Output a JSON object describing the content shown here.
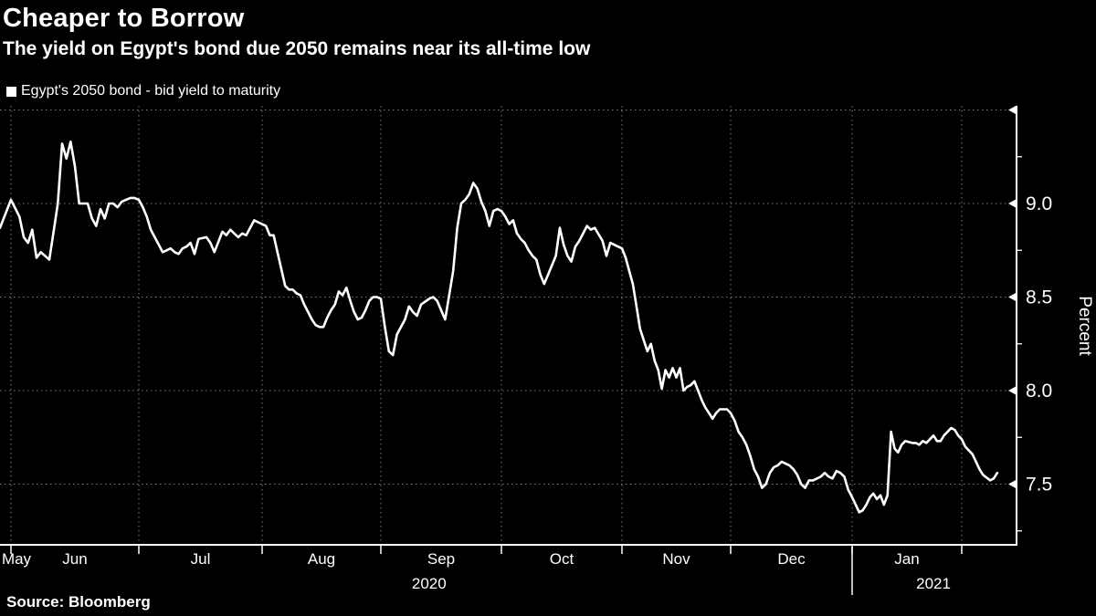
{
  "header": {
    "title": "Cheaper to Borrow",
    "subtitle": "The yield on Egypt's bond due 2050 remains near its all-time low"
  },
  "legend": {
    "marker_color": "#ffffff",
    "label": "Egypt's 2050 bond - bid yield to maturity"
  },
  "source": "Source: Bloomberg",
  "colors": {
    "background": "#000000",
    "line": "#ffffff",
    "text": "#ffffff",
    "grid": "#7d7d7d",
    "axis": "#ffffff"
  },
  "y_axis": {
    "title": "Percent",
    "ticks": [
      {
        "value": 9.0,
        "label": "9.0"
      },
      {
        "value": 8.5,
        "label": "8.5"
      },
      {
        "value": 8.0,
        "label": "8.0"
      },
      {
        "value": 7.5,
        "label": "7.5"
      }
    ],
    "major_tick_values": [
      9.5,
      9.0,
      8.5,
      8.0,
      7.5
    ],
    "minor_tick_values": [
      9.25,
      8.75,
      8.25,
      7.75,
      7.25
    ]
  },
  "x_axis": {
    "tick_dates": [
      "2020-06-01",
      "2020-07-01",
      "2020-08-01",
      "2020-09-01",
      "2020-10-01",
      "2020-11-01",
      "2020-12-01",
      "2021-01-01",
      "2021-02-01"
    ],
    "months": [
      {
        "label": "May",
        "start": "2020-05-29",
        "end": "2020-06-01"
      },
      {
        "label": "Jun",
        "start": "2020-06-01",
        "end": "2020-07-01"
      },
      {
        "label": "Jul",
        "start": "2020-07-01",
        "end": "2020-08-01"
      },
      {
        "label": "Aug",
        "start": "2020-08-01",
        "end": "2020-09-01"
      },
      {
        "label": "Sep",
        "start": "2020-09-01",
        "end": "2020-10-01"
      },
      {
        "label": "Oct",
        "start": "2020-10-01",
        "end": "2020-11-01"
      },
      {
        "label": "Nov",
        "start": "2020-11-01",
        "end": "2020-12-01"
      },
      {
        "label": "Dec",
        "start": "2020-12-01",
        "end": "2021-01-01"
      },
      {
        "label": "Jan",
        "start": "2021-01-01",
        "end": "2021-02-01"
      }
    ],
    "years": [
      {
        "label": "2020",
        "at": "2020-09-13"
      },
      {
        "label": "2021",
        "at": "2021-01-24"
      }
    ],
    "year_separator_date": "2021-01-01"
  },
  "chart_data": {
    "type": "line",
    "title": "Cheaper to Borrow",
    "subtitle": "The yield on Egypt's bond due 2050 remains near its all-time low",
    "xlabel": "",
    "ylabel": "Percent",
    "ylim": [
      7.17,
      9.52
    ],
    "y_gridlines": [
      7.5,
      8.0,
      8.5,
      9.0,
      9.5
    ],
    "x_range": [
      "2020-05-29",
      "2021-02-15"
    ],
    "grid": "dotted",
    "legend_position": "top-left",
    "series": [
      {
        "name": "Egypt's 2050 bond - bid yield to maturity",
        "color": "#ffffff",
        "points": [
          [
            "2020-05-29",
            8.87
          ],
          [
            "2020-06-01",
            9.02
          ],
          [
            "2020-06-03",
            8.93
          ],
          [
            "2020-06-04",
            8.82
          ],
          [
            "2020-06-05",
            8.79
          ],
          [
            "2020-06-06",
            8.86
          ],
          [
            "2020-06-07",
            8.71
          ],
          [
            "2020-06-08",
            8.74
          ],
          [
            "2020-06-10",
            8.7
          ],
          [
            "2020-06-11",
            8.85
          ],
          [
            "2020-06-12",
            9.0
          ],
          [
            "2020-06-13",
            9.32
          ],
          [
            "2020-06-14",
            9.24
          ],
          [
            "2020-06-15",
            9.33
          ],
          [
            "2020-06-16",
            9.2
          ],
          [
            "2020-06-17",
            9.0
          ],
          [
            "2020-06-19",
            9.0
          ],
          [
            "2020-06-20",
            8.92
          ],
          [
            "2020-06-21",
            8.88
          ],
          [
            "2020-06-22",
            8.97
          ],
          [
            "2020-06-23",
            8.92
          ],
          [
            "2020-06-24",
            9.0
          ],
          [
            "2020-06-25",
            9.0
          ],
          [
            "2020-06-26",
            8.98
          ],
          [
            "2020-06-27",
            9.01
          ],
          [
            "2020-06-28",
            9.02
          ],
          [
            "2020-06-29",
            9.03
          ],
          [
            "2020-06-30",
            9.03
          ],
          [
            "2020-07-01",
            9.02
          ],
          [
            "2020-07-02",
            8.98
          ],
          [
            "2020-07-03",
            8.93
          ],
          [
            "2020-07-04",
            8.86
          ],
          [
            "2020-07-05",
            8.82
          ],
          [
            "2020-07-06",
            8.78
          ],
          [
            "2020-07-07",
            8.74
          ],
          [
            "2020-07-08",
            8.75
          ],
          [
            "2020-07-09",
            8.76
          ],
          [
            "2020-07-10",
            8.74
          ],
          [
            "2020-07-11",
            8.73
          ],
          [
            "2020-07-12",
            8.76
          ],
          [
            "2020-07-13",
            8.77
          ],
          [
            "2020-07-14",
            8.79
          ],
          [
            "2020-07-15",
            8.73
          ],
          [
            "2020-07-16",
            8.81
          ],
          [
            "2020-07-18",
            8.82
          ],
          [
            "2020-07-19",
            8.79
          ],
          [
            "2020-07-20",
            8.74
          ],
          [
            "2020-07-22",
            8.85
          ],
          [
            "2020-07-23",
            8.83
          ],
          [
            "2020-07-24",
            8.86
          ],
          [
            "2020-07-25",
            8.84
          ],
          [
            "2020-07-26",
            8.82
          ],
          [
            "2020-07-27",
            8.84
          ],
          [
            "2020-07-28",
            8.83
          ],
          [
            "2020-07-30",
            8.91
          ],
          [
            "2020-07-31",
            8.9
          ],
          [
            "2020-08-02",
            8.88
          ],
          [
            "2020-08-03",
            8.83
          ],
          [
            "2020-08-04",
            8.83
          ],
          [
            "2020-08-05",
            8.74
          ],
          [
            "2020-08-07",
            8.56
          ],
          [
            "2020-08-08",
            8.54
          ],
          [
            "2020-08-09",
            8.54
          ],
          [
            "2020-08-10",
            8.52
          ],
          [
            "2020-08-11",
            8.51
          ],
          [
            "2020-08-12",
            8.46
          ],
          [
            "2020-08-13",
            8.42
          ],
          [
            "2020-08-14",
            8.38
          ],
          [
            "2020-08-15",
            8.35
          ],
          [
            "2020-08-16",
            8.34
          ],
          [
            "2020-08-17",
            8.34
          ],
          [
            "2020-08-18",
            8.39
          ],
          [
            "2020-08-19",
            8.43
          ],
          [
            "2020-08-20",
            8.46
          ],
          [
            "2020-08-21",
            8.53
          ],
          [
            "2020-08-22",
            8.51
          ],
          [
            "2020-08-23",
            8.55
          ],
          [
            "2020-08-24",
            8.48
          ],
          [
            "2020-08-25",
            8.42
          ],
          [
            "2020-08-26",
            8.38
          ],
          [
            "2020-08-27",
            8.39
          ],
          [
            "2020-08-28",
            8.43
          ],
          [
            "2020-08-29",
            8.48
          ],
          [
            "2020-08-30",
            8.5
          ],
          [
            "2020-08-31",
            8.5
          ],
          [
            "2020-09-01",
            8.49
          ],
          [
            "2020-09-02",
            8.34
          ],
          [
            "2020-09-03",
            8.21
          ],
          [
            "2020-09-04",
            8.19
          ],
          [
            "2020-09-05",
            8.3
          ],
          [
            "2020-09-07",
            8.38
          ],
          [
            "2020-09-08",
            8.45
          ],
          [
            "2020-09-09",
            8.42
          ],
          [
            "2020-09-10",
            8.4
          ],
          [
            "2020-09-11",
            8.46
          ],
          [
            "2020-09-13",
            8.49
          ],
          [
            "2020-09-14",
            8.5
          ],
          [
            "2020-09-15",
            8.48
          ],
          [
            "2020-09-16",
            8.43
          ],
          [
            "2020-09-17",
            8.38
          ],
          [
            "2020-09-18",
            8.51
          ],
          [
            "2020-09-19",
            8.64
          ],
          [
            "2020-09-20",
            8.87
          ],
          [
            "2020-09-21",
            9.0
          ],
          [
            "2020-09-22",
            9.02
          ],
          [
            "2020-09-23",
            9.05
          ],
          [
            "2020-09-24",
            9.11
          ],
          [
            "2020-09-25",
            9.08
          ],
          [
            "2020-09-26",
            9.01
          ],
          [
            "2020-09-27",
            8.96
          ],
          [
            "2020-09-28",
            8.88
          ],
          [
            "2020-09-29",
            8.96
          ],
          [
            "2020-09-30",
            8.97
          ],
          [
            "2020-10-01",
            8.96
          ],
          [
            "2020-10-02",
            8.93
          ],
          [
            "2020-10-03",
            8.89
          ],
          [
            "2020-10-04",
            8.91
          ],
          [
            "2020-10-05",
            8.84
          ],
          [
            "2020-10-06",
            8.81
          ],
          [
            "2020-10-07",
            8.79
          ],
          [
            "2020-10-08",
            8.75
          ],
          [
            "2020-10-09",
            8.72
          ],
          [
            "2020-10-10",
            8.7
          ],
          [
            "2020-10-11",
            8.62
          ],
          [
            "2020-10-12",
            8.57
          ],
          [
            "2020-10-13",
            8.62
          ],
          [
            "2020-10-15",
            8.72
          ],
          [
            "2020-10-16",
            8.87
          ],
          [
            "2020-10-17",
            8.78
          ],
          [
            "2020-10-18",
            8.72
          ],
          [
            "2020-10-19",
            8.69
          ],
          [
            "2020-10-20",
            8.77
          ],
          [
            "2020-10-21",
            8.8
          ],
          [
            "2020-10-23",
            8.88
          ],
          [
            "2020-10-24",
            8.86
          ],
          [
            "2020-10-25",
            8.87
          ],
          [
            "2020-10-27",
            8.8
          ],
          [
            "2020-10-28",
            8.72
          ],
          [
            "2020-10-29",
            8.79
          ],
          [
            "2020-10-31",
            8.77
          ],
          [
            "2020-11-01",
            8.76
          ],
          [
            "2020-11-02",
            8.71
          ],
          [
            "2020-11-03",
            8.64
          ],
          [
            "2020-11-04",
            8.57
          ],
          [
            "2020-11-05",
            8.45
          ],
          [
            "2020-11-06",
            8.33
          ],
          [
            "2020-11-07",
            8.27
          ],
          [
            "2020-11-08",
            8.21
          ],
          [
            "2020-11-09",
            8.25
          ],
          [
            "2020-11-10",
            8.16
          ],
          [
            "2020-11-11",
            8.11
          ],
          [
            "2020-11-12",
            8.01
          ],
          [
            "2020-11-13",
            8.11
          ],
          [
            "2020-11-14",
            8.07
          ],
          [
            "2020-11-15",
            8.12
          ],
          [
            "2020-11-16",
            8.07
          ],
          [
            "2020-11-17",
            8.12
          ],
          [
            "2020-11-18",
            8.0
          ],
          [
            "2020-11-19",
            8.02
          ],
          [
            "2020-11-20",
            8.03
          ],
          [
            "2020-11-21",
            8.05
          ],
          [
            "2020-11-22",
            8.0
          ],
          [
            "2020-11-23",
            7.95
          ],
          [
            "2020-11-24",
            7.91
          ],
          [
            "2020-11-25",
            7.88
          ],
          [
            "2020-11-26",
            7.85
          ],
          [
            "2020-11-27",
            7.88
          ],
          [
            "2020-11-28",
            7.9
          ],
          [
            "2020-11-30",
            7.9
          ],
          [
            "2020-12-01",
            7.88
          ],
          [
            "2020-12-02",
            7.84
          ],
          [
            "2020-12-03",
            7.78
          ],
          [
            "2020-12-04",
            7.75
          ],
          [
            "2020-12-05",
            7.71
          ],
          [
            "2020-12-06",
            7.65
          ],
          [
            "2020-12-07",
            7.58
          ],
          [
            "2020-12-08",
            7.54
          ],
          [
            "2020-12-09",
            7.48
          ],
          [
            "2020-12-10",
            7.5
          ],
          [
            "2020-12-11",
            7.56
          ],
          [
            "2020-12-12",
            7.59
          ],
          [
            "2020-12-13",
            7.6
          ],
          [
            "2020-12-14",
            7.62
          ],
          [
            "2020-12-15",
            7.61
          ],
          [
            "2020-12-16",
            7.6
          ],
          [
            "2020-12-17",
            7.58
          ],
          [
            "2020-12-18",
            7.55
          ],
          [
            "2020-12-19",
            7.5
          ],
          [
            "2020-12-20",
            7.48
          ],
          [
            "2020-12-21",
            7.52
          ],
          [
            "2020-12-22",
            7.52
          ],
          [
            "2020-12-24",
            7.54
          ],
          [
            "2020-12-25",
            7.56
          ],
          [
            "2020-12-26",
            7.54
          ],
          [
            "2020-12-27",
            7.53
          ],
          [
            "2020-12-28",
            7.57
          ],
          [
            "2020-12-29",
            7.56
          ],
          [
            "2020-12-30",
            7.54
          ],
          [
            "2020-12-31",
            7.47
          ],
          [
            "2021-01-01",
            7.43
          ],
          [
            "2021-01-02",
            7.39
          ],
          [
            "2021-01-03",
            7.35
          ],
          [
            "2021-01-04",
            7.36
          ],
          [
            "2021-01-05",
            7.39
          ],
          [
            "2021-01-06",
            7.43
          ],
          [
            "2021-01-07",
            7.45
          ],
          [
            "2021-01-08",
            7.42
          ],
          [
            "2021-01-09",
            7.44
          ],
          [
            "2021-01-10",
            7.39
          ],
          [
            "2021-01-11",
            7.44
          ],
          [
            "2021-01-12",
            7.78
          ],
          [
            "2021-01-13",
            7.69
          ],
          [
            "2021-01-14",
            7.67
          ],
          [
            "2021-01-15",
            7.71
          ],
          [
            "2021-01-16",
            7.73
          ],
          [
            "2021-01-18",
            7.72
          ],
          [
            "2021-01-19",
            7.72
          ],
          [
            "2021-01-20",
            7.71
          ],
          [
            "2021-01-21",
            7.73
          ],
          [
            "2021-01-22",
            7.72
          ],
          [
            "2021-01-23",
            7.74
          ],
          [
            "2021-01-24",
            7.76
          ],
          [
            "2021-01-25",
            7.73
          ],
          [
            "2021-01-26",
            7.73
          ],
          [
            "2021-01-27",
            7.76
          ],
          [
            "2021-01-29",
            7.8
          ],
          [
            "2021-01-30",
            7.79
          ],
          [
            "2021-01-31",
            7.76
          ],
          [
            "2021-02-01",
            7.74
          ],
          [
            "2021-02-02",
            7.7
          ],
          [
            "2021-02-04",
            7.66
          ],
          [
            "2021-02-05",
            7.62
          ],
          [
            "2021-02-06",
            7.58
          ],
          [
            "2021-02-07",
            7.55
          ],
          [
            "2021-02-09",
            7.52
          ],
          [
            "2021-02-10",
            7.53
          ],
          [
            "2021-02-11",
            7.56
          ]
        ]
      }
    ]
  }
}
